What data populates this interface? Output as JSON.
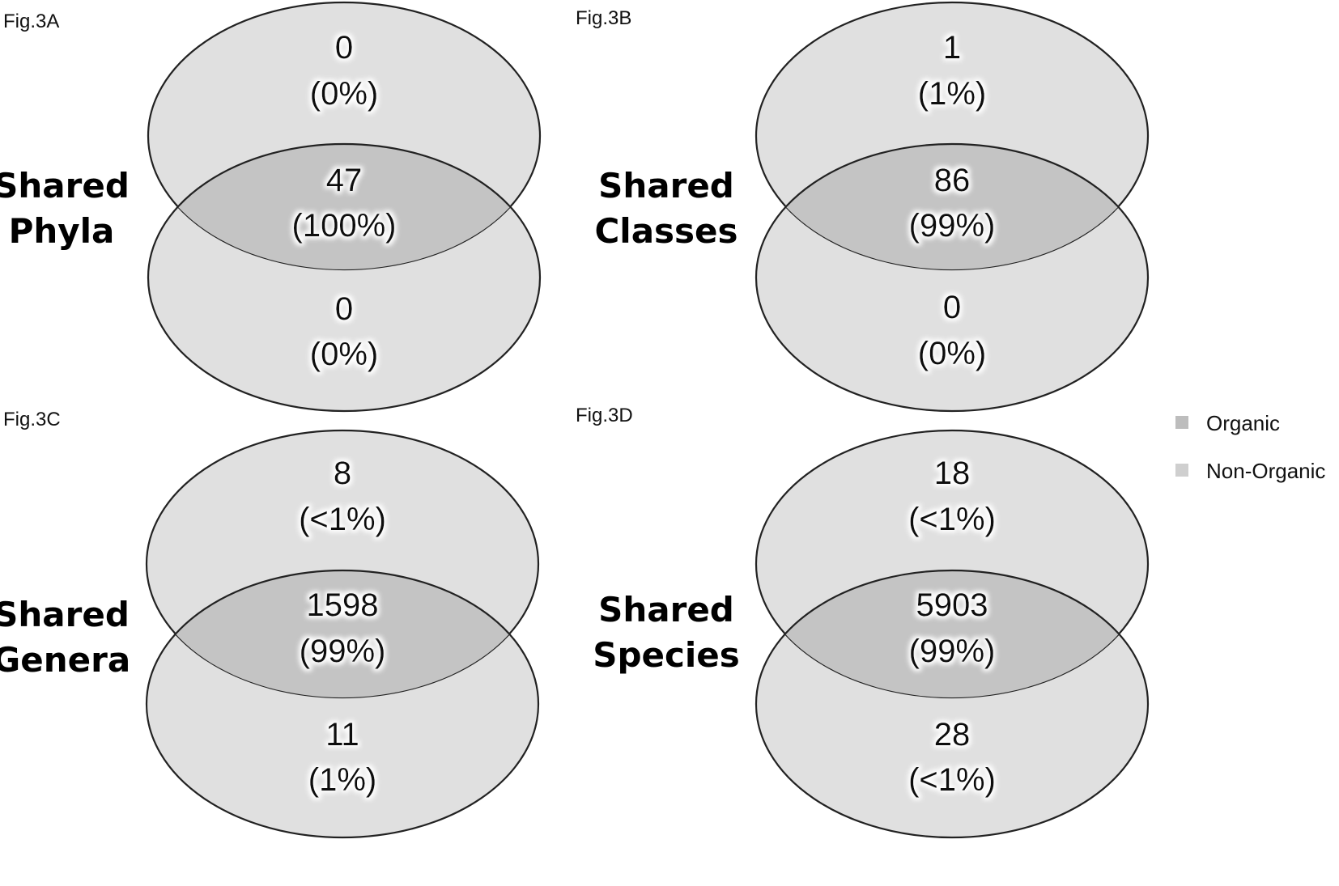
{
  "colors": {
    "set_fill": "#e0e0e0",
    "overlap_tint": "#c4c4c4",
    "outline": "#222222",
    "legend_organic": "#bdbdbd",
    "legend_non_organic": "#cfcfcf"
  },
  "legend": {
    "items": [
      {
        "label": "Organic"
      },
      {
        "label": "Non-Organic"
      }
    ]
  },
  "panels": [
    {
      "fig": "Fig.3A",
      "title_line1": "Shared",
      "title_line2": "Phyla",
      "top": {
        "count": "0",
        "pct": "(0%)"
      },
      "overlap": {
        "count": "47",
        "pct": "(100%)"
      },
      "bottom": {
        "count": "0",
        "pct": "(0%)"
      }
    },
    {
      "fig": "Fig.3B",
      "title_line1": "Shared",
      "title_line2": "Classes",
      "top": {
        "count": "1",
        "pct": "(1%)"
      },
      "overlap": {
        "count": "86",
        "pct": "(99%)"
      },
      "bottom": {
        "count": "0",
        "pct": "(0%)"
      }
    },
    {
      "fig": "Fig.3C",
      "title_line1": "Shared",
      "title_line2": "Genera",
      "top": {
        "count": "8",
        "pct": "(<1%)"
      },
      "overlap": {
        "count": "1598",
        "pct": "(99%)"
      },
      "bottom": {
        "count": "11",
        "pct": "(1%)"
      }
    },
    {
      "fig": "Fig.3D",
      "title_line1": "Shared",
      "title_line2": "Species",
      "top": {
        "count": "18",
        "pct": "(<1%)"
      },
      "overlap": {
        "count": "5903",
        "pct": "(99%)"
      },
      "bottom": {
        "count": "28",
        "pct": "(<1%)"
      }
    }
  ]
}
